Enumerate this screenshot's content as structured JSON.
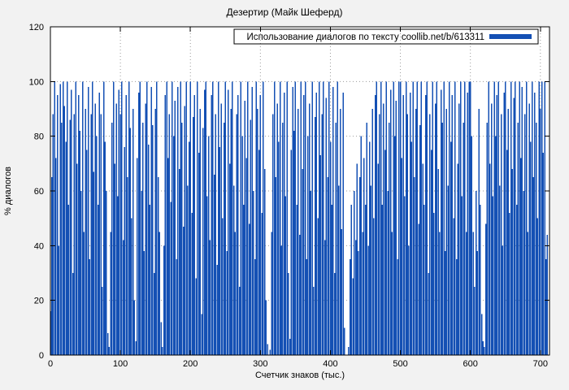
{
  "colors": {
    "bar": "#1450b4",
    "grid": "#9a9a9a",
    "axis": "#000000",
    "background": "#f2f2f2",
    "plot_bg": "#ffffff"
  },
  "chart_data": {
    "type": "bar",
    "title": "Дезертир (Майк Шеферд)",
    "xlabel": "Счетчик знаков (тыс.)",
    "ylabel": "% диалогов",
    "legend": "Использование диалогов по тексту coollib.net/b/613311",
    "legend_position": "top-right",
    "grid": "dotted",
    "xlim": [
      0,
      713
    ],
    "ylim": [
      0,
      120
    ],
    "x_ticks": [
      0,
      100,
      200,
      300,
      400,
      500,
      600,
      700
    ],
    "y_ticks": [
      0,
      20,
      40,
      60,
      80,
      100,
      120
    ],
    "x_start": 0,
    "x_step": 2,
    "values": [
      16,
      65,
      88,
      100,
      72,
      95,
      40,
      99,
      85,
      100,
      91,
      78,
      100,
      55,
      86,
      97,
      30,
      88,
      100,
      70,
      95,
      82,
      60,
      100,
      45,
      90,
      75,
      98,
      35,
      88,
      100,
      67,
      92,
      80,
      55,
      96,
      88,
      25,
      100,
      78,
      60,
      8,
      3,
      45,
      85,
      100,
      70,
      92,
      58,
      97,
      88,
      100,
      42,
      76,
      95,
      65,
      100,
      83,
      50,
      90,
      20,
      5,
      72,
      96,
      100,
      60,
      85,
      38,
      92,
      100,
      77,
      55,
      98,
      84,
      30,
      90,
      100,
      65,
      45,
      12,
      3,
      40,
      95,
      100,
      72,
      88,
      56,
      100,
      80,
      93,
      35,
      98,
      68,
      100,
      85,
      47,
      91,
      100,
      62,
      78,
      100,
      52,
      87,
      95,
      28,
      100,
      74,
      90,
      15,
      83,
      97,
      100,
      58,
      80,
      42,
      95,
      100,
      66,
      88,
      33,
      100,
      76,
      92,
      50,
      85,
      100,
      38,
      97,
      70,
      90,
      100,
      62,
      45,
      88,
      95,
      25,
      100,
      80,
      55,
      93,
      72,
      100,
      48,
      86,
      98,
      60,
      35,
      100,
      90,
      75,
      95,
      52,
      100,
      68,
      20,
      4,
      0,
      2,
      45,
      88,
      100,
      65,
      92,
      78,
      100,
      40,
      85,
      96,
      58,
      100,
      30,
      6,
      75,
      98,
      82,
      100,
      55,
      90,
      44,
      100,
      68,
      95,
      100,
      35,
      80,
      92,
      60,
      100,
      25,
      87,
      96,
      50,
      100,
      73,
      88,
      100,
      42,
      94,
      65,
      100,
      78,
      55,
      98,
      30,
      85,
      100,
      62,
      90,
      46,
      96,
      10,
      0,
      0,
      3,
      35,
      55,
      28,
      60,
      42,
      70,
      38,
      65,
      80,
      45,
      72,
      55,
      85,
      40,
      78,
      62,
      90,
      50,
      95,
      100,
      70,
      88,
      100,
      55,
      92,
      75,
      100,
      60,
      85,
      97,
      45,
      100,
      80,
      93,
      35,
      100,
      100,
      72,
      95,
      58,
      100,
      88,
      40,
      96,
      78,
      100,
      65,
      90,
      100,
      48,
      84,
      100,
      70,
      55,
      95,
      100,
      30,
      88,
      75,
      100,
      52,
      92,
      100,
      68,
      45,
      97,
      85,
      100,
      38,
      90,
      62,
      100,
      78,
      95,
      50,
      100,
      35,
      70,
      92,
      100,
      58,
      85,
      100,
      45,
      96,
      100,
      100,
      80,
      45,
      25,
      60,
      38,
      90,
      55,
      15,
      5,
      3,
      48,
      85,
      100,
      70,
      92,
      58,
      100,
      80,
      95,
      100,
      62,
      88,
      40,
      96,
      100,
      75,
      90,
      52,
      100,
      68,
      94,
      100,
      55,
      85,
      100,
      72,
      98,
      60,
      88,
      100,
      45,
      92,
      78,
      100,
      65,
      96,
      85,
      50,
      100,
      90,
      100,
      74,
      100,
      35,
      44
    ]
  }
}
